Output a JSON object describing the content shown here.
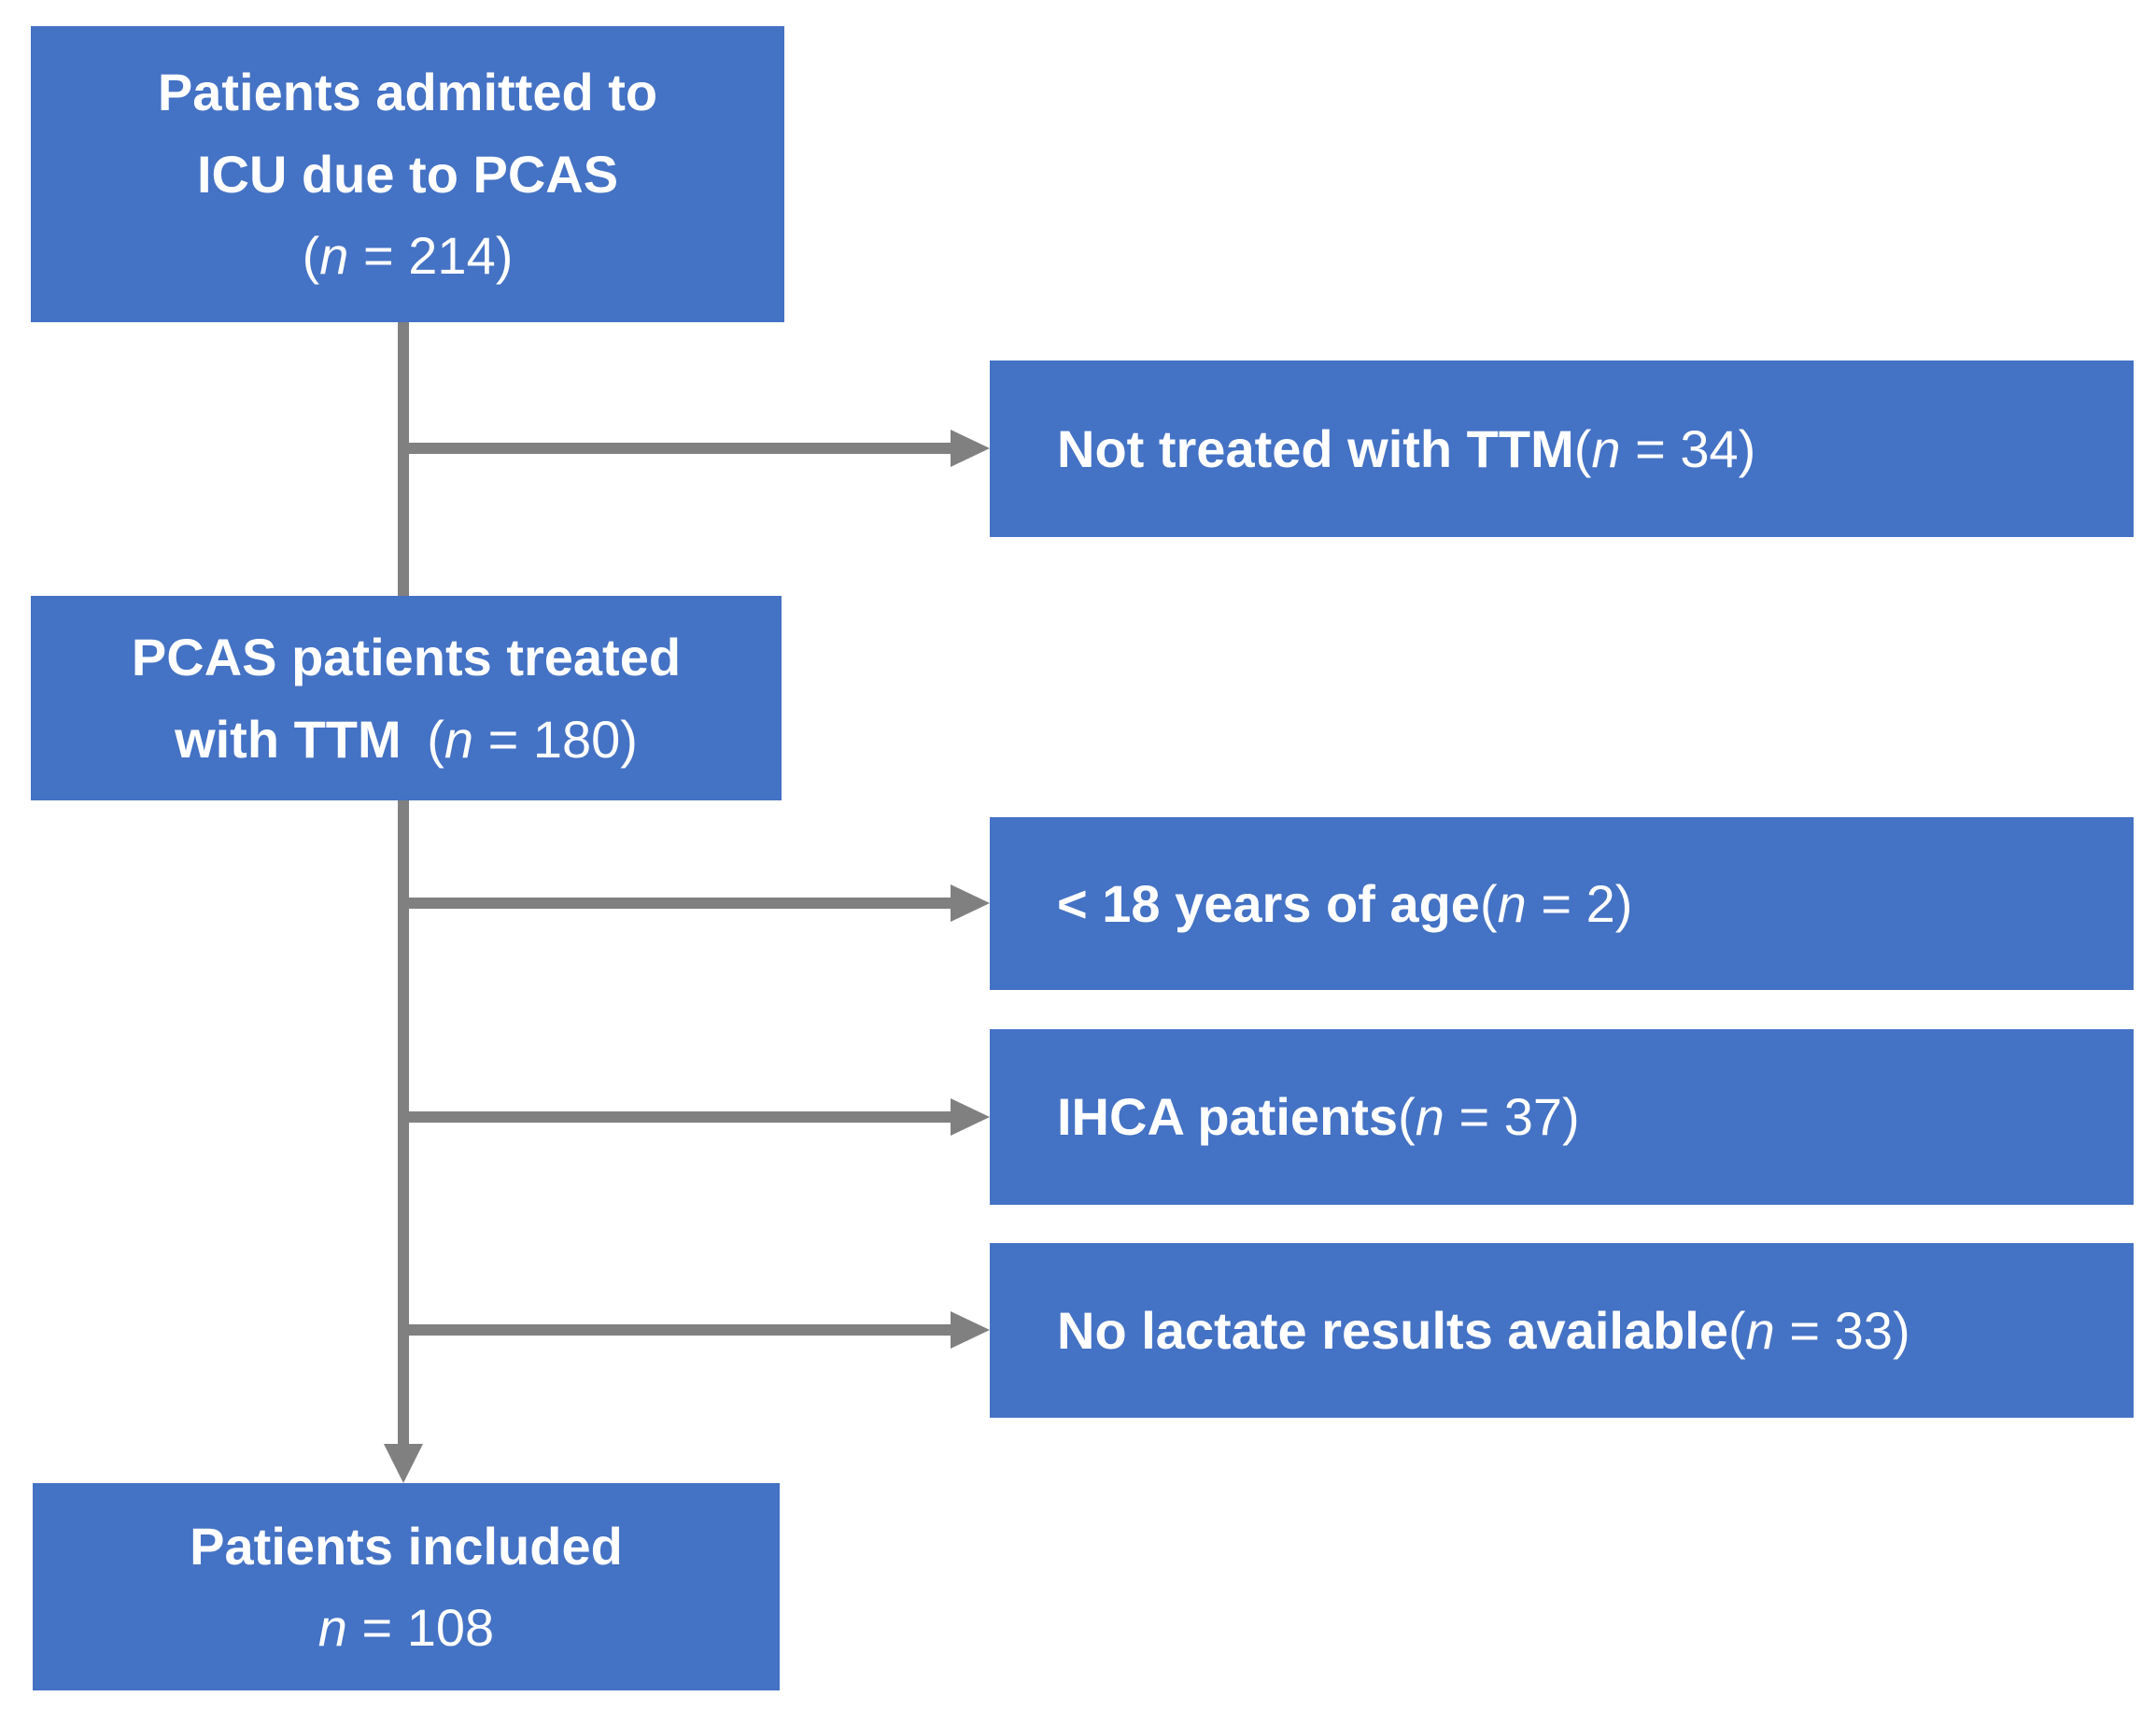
{
  "colors": {
    "box_fill": "#4472C4",
    "box_text": "#FFFFFF",
    "connector": "#808080",
    "background": "#FFFFFF"
  },
  "nodes": {
    "admitted": {
      "line1": "Patients admitted to",
      "line2": "ICU due to PCAS",
      "count_open": "(",
      "count_var": "n",
      "count_rest": " = 214)"
    },
    "not_treated": {
      "label": "Not treated with TTM ",
      "count_open": "(",
      "count_var": "n",
      "count_rest": " = 34)"
    },
    "treated": {
      "line1": "PCAS patients treated",
      "line2_label": "with TTM ",
      "count_open": "(",
      "count_var": "n",
      "count_rest": " = 180)"
    },
    "under_18": {
      "label": "< 18 years of age ",
      "count_open": "(",
      "count_var": "n",
      "count_rest": " = 2)"
    },
    "ihca": {
      "label": "IHCA patients ",
      "count_open": "(",
      "count_var": "n",
      "count_rest": " = 37)"
    },
    "no_lactate": {
      "label": "No lactate results available ",
      "count_open": "(",
      "count_var": "n",
      "count_rest": " = 33)"
    },
    "included": {
      "line1": "Patients included",
      "count_open": "",
      "count_var": "n",
      "count_rest": " = 108"
    }
  },
  "edges": [
    {
      "from": "admitted",
      "to": "not_treated"
    },
    {
      "from": "admitted",
      "to": "treated"
    },
    {
      "from": "treated",
      "to": "under_18"
    },
    {
      "from": "treated",
      "to": "ihca"
    },
    {
      "from": "treated",
      "to": "no_lactate"
    },
    {
      "from": "treated",
      "to": "included"
    }
  ]
}
